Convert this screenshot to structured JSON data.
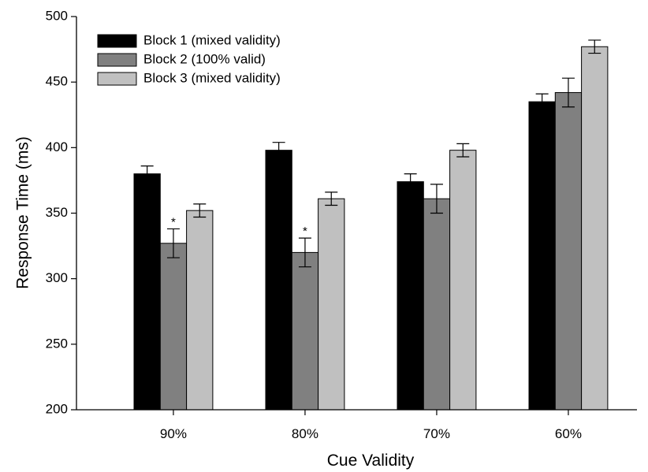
{
  "chart_data": {
    "type": "bar",
    "title": "",
    "xlabel": "Cue Validity",
    "ylabel": "Response Time (ms)",
    "ylim": [
      200,
      500
    ],
    "yticks": [
      200,
      250,
      300,
      350,
      400,
      450,
      500
    ],
    "categories": [
      "90%",
      "80%",
      "70%",
      "60%"
    ],
    "series": [
      {
        "name": "Block 1 (mixed validity)",
        "color": "#000000",
        "values": [
          380,
          398,
          374,
          435
        ],
        "errors": [
          6,
          6,
          6,
          6
        ]
      },
      {
        "name": "Block 2 (100% valid)",
        "color": "#808080",
        "values": [
          327,
          320,
          361,
          442
        ],
        "errors": [
          11,
          11,
          11,
          11
        ]
      },
      {
        "name": "Block 3 (mixed validity)",
        "color": "#c0c0c0",
        "values": [
          352,
          361,
          398,
          477
        ],
        "errors": [
          5,
          5,
          5,
          5
        ]
      }
    ],
    "annotations": [
      {
        "text": "*",
        "series": 1,
        "category": 0
      },
      {
        "text": "*",
        "series": 1,
        "category": 1
      }
    ],
    "legend": "top-left",
    "grid": false
  }
}
